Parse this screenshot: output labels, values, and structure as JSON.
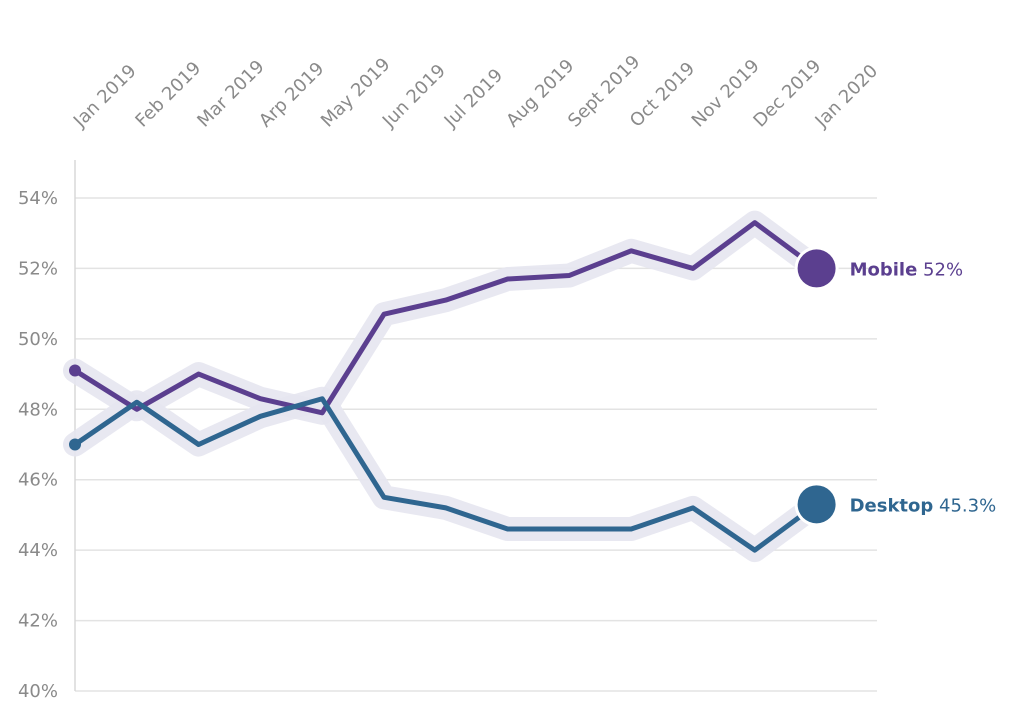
{
  "chart_data": {
    "type": "line",
    "x": [
      "Jan 2019",
      "Feb 2019",
      "Mar 2019",
      "Arp 2019",
      "May 2019",
      "Jun 2019",
      "Jul 2019",
      "Aug 2019",
      "Sept 2019",
      "Oct 2019",
      "Nov 2019",
      "Dec 2019",
      "Jan 2020"
    ],
    "y_ticks": [
      "40%",
      "42%",
      "44%",
      "46%",
      "48%",
      "50%",
      "52%",
      "54%"
    ],
    "ylim": [
      40,
      54
    ],
    "grid": true,
    "series": [
      {
        "name": "Mobile",
        "end_label": "52%",
        "color": "#5b3f8f",
        "values": [
          49.1,
          48.0,
          49.0,
          48.3,
          47.9,
          50.7,
          51.1,
          51.7,
          51.8,
          52.5,
          52.0,
          53.3,
          52.0
        ]
      },
      {
        "name": "Desktop",
        "end_label": "45.3%",
        "color": "#2f6690",
        "values": [
          47.0,
          48.2,
          47.0,
          47.8,
          48.3,
          45.5,
          45.2,
          44.6,
          44.6,
          44.6,
          45.2,
          44.0,
          45.3
        ]
      }
    ],
    "halo_color": "#e6e6f0"
  }
}
